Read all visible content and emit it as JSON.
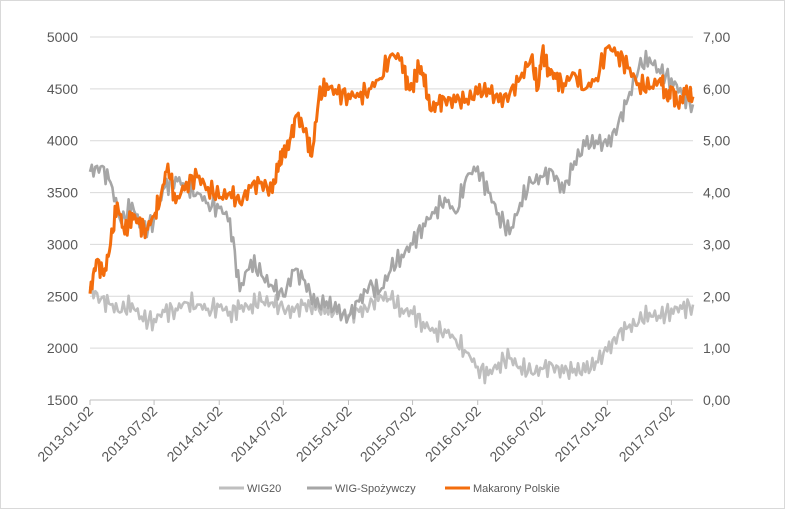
{
  "chart_data": {
    "type": "line",
    "title": "",
    "xlabel": "",
    "ylabel": "",
    "grid": true,
    "legend_position": "bottom",
    "x_ticks": [
      "2013-01-02",
      "2013-07-02",
      "2014-01-02",
      "2014-07-02",
      "2015-01-02",
      "2015-07-02",
      "2016-01-02",
      "2016-07-02",
      "2017-01-02",
      "2017-07-02"
    ],
    "y_left": {
      "ticks": [
        "1500",
        "2000",
        "2500",
        "3000",
        "3500",
        "4000",
        "4500",
        "5000"
      ],
      "range": [
        1500,
        5000
      ]
    },
    "y_right": {
      "ticks": [
        "0,00",
        "1,00",
        "2,00",
        "3,00",
        "4,00",
        "5,00",
        "6,00",
        "7,00"
      ],
      "range": [
        0,
        7
      ]
    },
    "series": [
      {
        "name": "WIG20",
        "axis": "left",
        "color": "#bfbfbf",
        "points": [
          [
            "2013-01-02",
            2580
          ],
          [
            "2013-02-01",
            2470
          ],
          [
            "2013-03-01",
            2420
          ],
          [
            "2013-04-01",
            2350
          ],
          [
            "2013-05-01",
            2430
          ],
          [
            "2013-06-01",
            2260
          ],
          [
            "2013-07-02",
            2280
          ],
          [
            "2013-08-01",
            2350
          ],
          [
            "2013-09-01",
            2380
          ],
          [
            "2013-10-01",
            2440
          ],
          [
            "2013-11-01",
            2420
          ],
          [
            "2013-12-01",
            2380
          ],
          [
            "2014-01-02",
            2400
          ],
          [
            "2014-02-01",
            2350
          ],
          [
            "2014-03-01",
            2380
          ],
          [
            "2014-04-01",
            2420
          ],
          [
            "2014-05-01",
            2450
          ],
          [
            "2014-06-01",
            2440
          ],
          [
            "2014-07-02",
            2380
          ],
          [
            "2014-08-01",
            2350
          ],
          [
            "2014-09-01",
            2430
          ],
          [
            "2014-10-01",
            2370
          ],
          [
            "2014-11-01",
            2380
          ],
          [
            "2014-12-01",
            2330
          ],
          [
            "2015-01-02",
            2320
          ],
          [
            "2015-02-01",
            2350
          ],
          [
            "2015-03-01",
            2400
          ],
          [
            "2015-04-01",
            2510
          ],
          [
            "2015-05-01",
            2470
          ],
          [
            "2015-06-01",
            2380
          ],
          [
            "2015-07-02",
            2330
          ],
          [
            "2015-08-01",
            2250
          ],
          [
            "2015-09-01",
            2150
          ],
          [
            "2015-10-01",
            2180
          ],
          [
            "2015-11-01",
            2080
          ],
          [
            "2015-12-01",
            1960
          ],
          [
            "2016-01-02",
            1820
          ],
          [
            "2016-02-01",
            1740
          ],
          [
            "2016-03-01",
            1860
          ],
          [
            "2016-04-01",
            1900
          ],
          [
            "2016-05-01",
            1820
          ],
          [
            "2016-06-01",
            1760
          ],
          [
            "2016-07-02",
            1800
          ],
          [
            "2016-08-01",
            1830
          ],
          [
            "2016-09-01",
            1760
          ],
          [
            "2016-10-01",
            1800
          ],
          [
            "2016-11-01",
            1770
          ],
          [
            "2016-12-01",
            1870
          ],
          [
            "2017-01-02",
            1970
          ],
          [
            "2017-02-01",
            2130
          ],
          [
            "2017-03-01",
            2200
          ],
          [
            "2017-04-01",
            2250
          ],
          [
            "2017-05-01",
            2340
          ],
          [
            "2017-06-01",
            2290
          ],
          [
            "2017-07-02",
            2380
          ],
          [
            "2017-08-01",
            2380
          ],
          [
            "2017-09-01",
            2420
          ]
        ]
      },
      {
        "name": "WIG-Spożywczy",
        "axis": "left",
        "color": "#a6a6a6",
        "points": [
          [
            "2013-01-02",
            3700
          ],
          [
            "2013-02-01",
            3750
          ],
          [
            "2013-03-01",
            3600
          ],
          [
            "2013-04-01",
            3200
          ],
          [
            "2013-05-01",
            3400
          ],
          [
            "2013-06-01",
            3100
          ],
          [
            "2013-07-02",
            3250
          ],
          [
            "2013-08-01",
            3550
          ],
          [
            "2013-09-01",
            3650
          ],
          [
            "2013-10-01",
            3550
          ],
          [
            "2013-11-01",
            3500
          ],
          [
            "2013-12-01",
            3400
          ],
          [
            "2014-01-02",
            3350
          ],
          [
            "2014-02-01",
            3250
          ],
          [
            "2014-03-01",
            2550
          ],
          [
            "2014-04-01",
            2850
          ],
          [
            "2014-05-01",
            2700
          ],
          [
            "2014-06-01",
            2600
          ],
          [
            "2014-07-02",
            2500
          ],
          [
            "2014-08-01",
            2750
          ],
          [
            "2014-09-01",
            2650
          ],
          [
            "2014-10-01",
            2400
          ],
          [
            "2014-11-01",
            2450
          ],
          [
            "2014-12-01",
            2350
          ],
          [
            "2015-01-02",
            2300
          ],
          [
            "2015-02-01",
            2450
          ],
          [
            "2015-03-01",
            2600
          ],
          [
            "2015-04-01",
            2550
          ],
          [
            "2015-05-01",
            2750
          ],
          [
            "2015-06-01",
            2900
          ],
          [
            "2015-07-02",
            3000
          ],
          [
            "2015-08-01",
            3200
          ],
          [
            "2015-09-01",
            3300
          ],
          [
            "2015-10-01",
            3450
          ],
          [
            "2015-11-01",
            3300
          ],
          [
            "2015-12-01",
            3650
          ],
          [
            "2016-01-02",
            3750
          ],
          [
            "2016-02-01",
            3500
          ],
          [
            "2016-03-01",
            3300
          ],
          [
            "2016-04-01",
            3100
          ],
          [
            "2016-05-01",
            3400
          ],
          [
            "2016-06-01",
            3600
          ],
          [
            "2016-07-02",
            3650
          ],
          [
            "2016-08-01",
            3700
          ],
          [
            "2016-09-01",
            3500
          ],
          [
            "2016-10-01",
            3800
          ],
          [
            "2016-11-01",
            3950
          ],
          [
            "2016-12-01",
            4000
          ],
          [
            "2017-01-02",
            3950
          ],
          [
            "2017-02-01",
            4150
          ],
          [
            "2017-03-01",
            4400
          ],
          [
            "2017-04-01",
            4700
          ],
          [
            "2017-05-01",
            4800
          ],
          [
            "2017-06-01",
            4650
          ],
          [
            "2017-07-02",
            4600
          ],
          [
            "2017-08-01",
            4450
          ],
          [
            "2017-09-01",
            4350
          ]
        ]
      },
      {
        "name": "Makarony Polskie",
        "axis": "right",
        "color": "#f36d0d",
        "points": [
          [
            "2013-01-02",
            2.05
          ],
          [
            "2013-01-20",
            2.7
          ],
          [
            "2013-02-10",
            2.4
          ],
          [
            "2013-03-01",
            3.0
          ],
          [
            "2013-03-20",
            3.8
          ],
          [
            "2013-04-10",
            3.2
          ],
          [
            "2013-05-01",
            3.6
          ],
          [
            "2013-05-20",
            3.4
          ],
          [
            "2013-06-10",
            3.3
          ],
          [
            "2013-07-02",
            3.55
          ],
          [
            "2013-07-20",
            3.9
          ],
          [
            "2013-08-10",
            4.55
          ],
          [
            "2013-09-01",
            3.8
          ],
          [
            "2013-10-01",
            4.2
          ],
          [
            "2013-11-01",
            4.3
          ],
          [
            "2013-12-01",
            4.1
          ],
          [
            "2014-01-02",
            3.9
          ],
          [
            "2014-02-01",
            4.0
          ],
          [
            "2014-03-01",
            3.8
          ],
          [
            "2014-04-01",
            4.1
          ],
          [
            "2014-05-01",
            4.2
          ],
          [
            "2014-06-01",
            4.0
          ],
          [
            "2014-06-20",
            4.6
          ],
          [
            "2014-07-02",
            4.7
          ],
          [
            "2014-07-20",
            5.0
          ],
          [
            "2014-08-10",
            5.5
          ],
          [
            "2014-09-01",
            5.2
          ],
          [
            "2014-09-20",
            4.7
          ],
          [
            "2014-10-10",
            5.8
          ],
          [
            "2014-11-01",
            6.1
          ],
          [
            "2014-12-01",
            5.9
          ],
          [
            "2015-01-02",
            5.9
          ],
          [
            "2015-02-01",
            5.85
          ],
          [
            "2015-03-01",
            6.0
          ],
          [
            "2015-04-01",
            6.2
          ],
          [
            "2015-05-01",
            6.65
          ],
          [
            "2015-06-01",
            6.6
          ],
          [
            "2015-06-20",
            6.0
          ],
          [
            "2015-07-02",
            6.1
          ],
          [
            "2015-07-20",
            6.4
          ],
          [
            "2015-08-01",
            6.3
          ],
          [
            "2015-08-20",
            5.6
          ],
          [
            "2015-09-10",
            5.7
          ],
          [
            "2015-10-01",
            5.8
          ],
          [
            "2015-11-01",
            5.75
          ],
          [
            "2015-12-01",
            5.8
          ],
          [
            "2016-01-02",
            5.9
          ],
          [
            "2016-02-01",
            6.0
          ],
          [
            "2016-03-01",
            5.75
          ],
          [
            "2016-04-01",
            5.9
          ],
          [
            "2016-05-01",
            6.2
          ],
          [
            "2016-06-01",
            6.6
          ],
          [
            "2016-06-20",
            6.0
          ],
          [
            "2016-07-02",
            6.7
          ],
          [
            "2016-07-20",
            6.4
          ],
          [
            "2016-08-10",
            6.2
          ],
          [
            "2016-09-01",
            6.1
          ],
          [
            "2016-10-01",
            6.3
          ],
          [
            "2016-11-01",
            6.0
          ],
          [
            "2016-12-01",
            6.2
          ],
          [
            "2017-01-02",
            6.8
          ],
          [
            "2017-02-01",
            6.7
          ],
          [
            "2017-03-01",
            6.4
          ],
          [
            "2017-04-01",
            6.1
          ],
          [
            "2017-05-01",
            6.0
          ],
          [
            "2017-06-01",
            6.2
          ],
          [
            "2017-06-20",
            5.8
          ],
          [
            "2017-07-02",
            6.0
          ],
          [
            "2017-07-20",
            5.7
          ],
          [
            "2017-08-10",
            5.9
          ],
          [
            "2017-09-01",
            5.85
          ]
        ]
      }
    ]
  }
}
